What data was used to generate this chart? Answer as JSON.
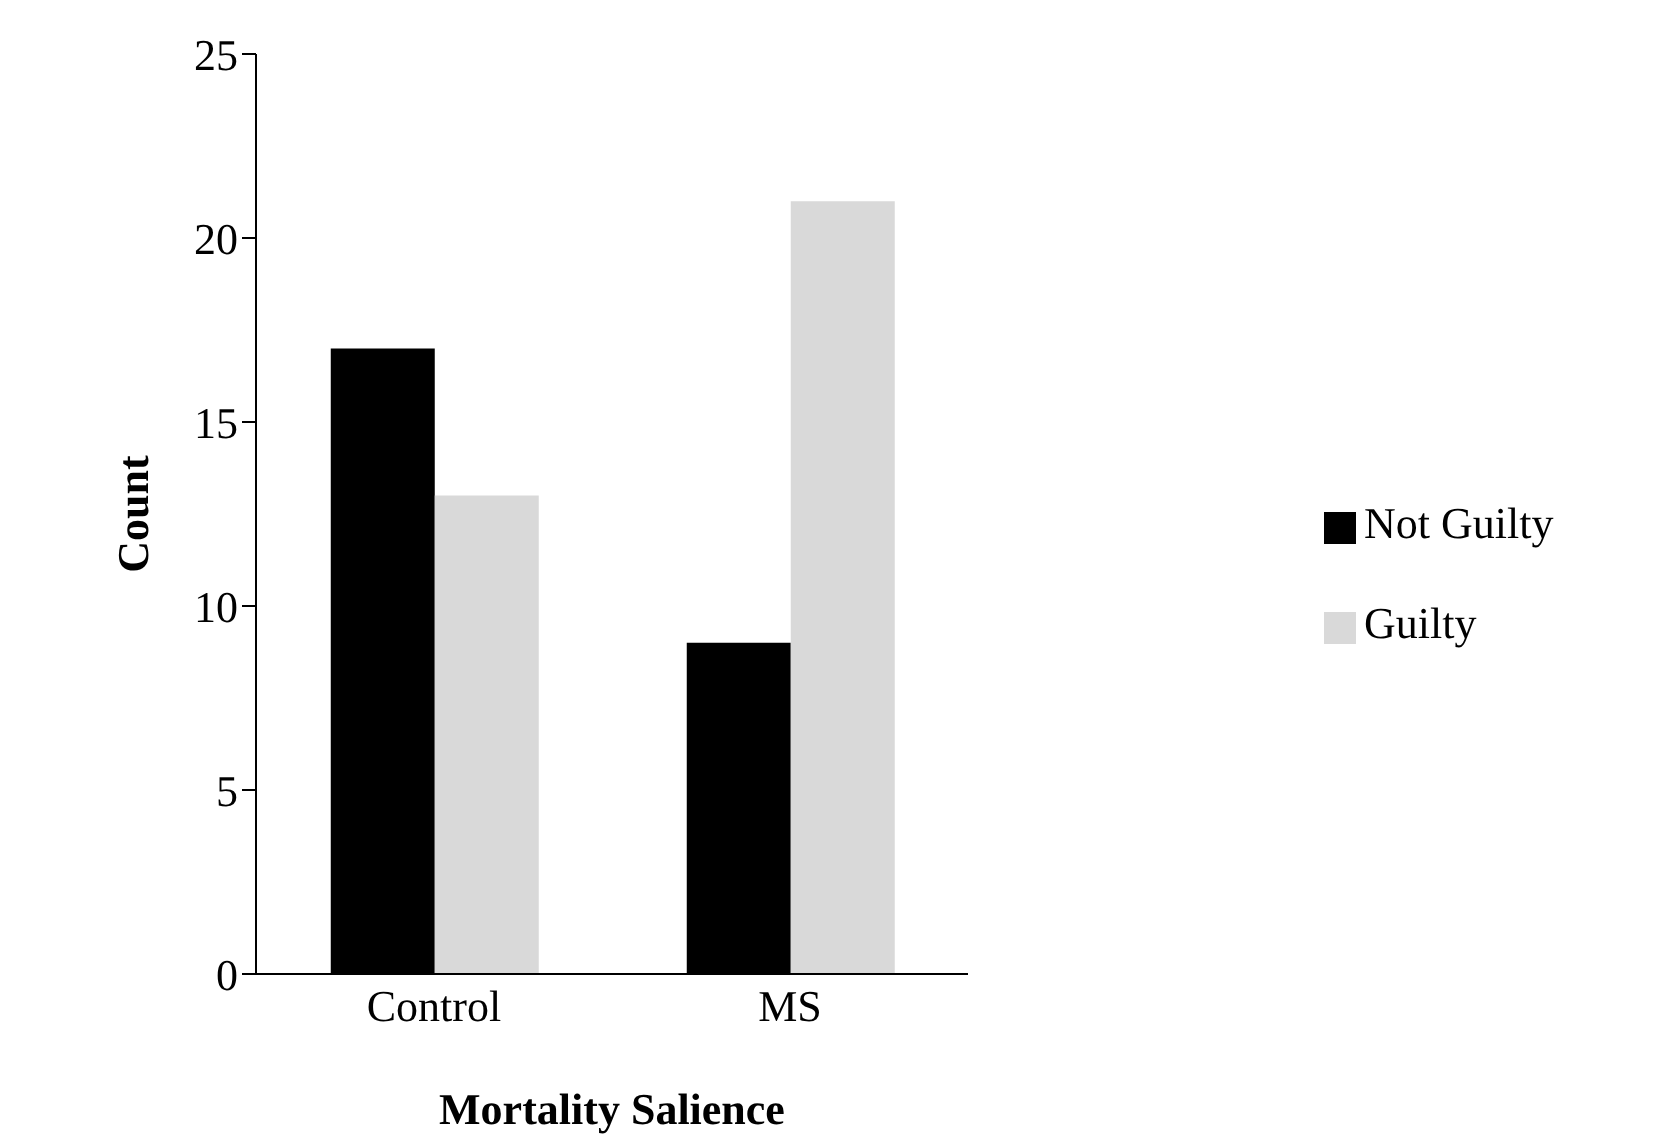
{
  "chart_data": {
    "type": "bar",
    "xlabel": "Mortality Salience",
    "ylabel": "Count",
    "categories": [
      "Control",
      "MS"
    ],
    "series": [
      {
        "name": "Not Guilty",
        "color": "#000000",
        "values": [
          17,
          9
        ]
      },
      {
        "name": "Guilty",
        "color": "#d9d9d9",
        "values": [
          13,
          21
        ]
      }
    ],
    "ylim": [
      0,
      25
    ],
    "yticks": [
      0,
      5,
      10,
      15,
      20,
      25
    ],
    "grid": false,
    "legend": "right"
  }
}
